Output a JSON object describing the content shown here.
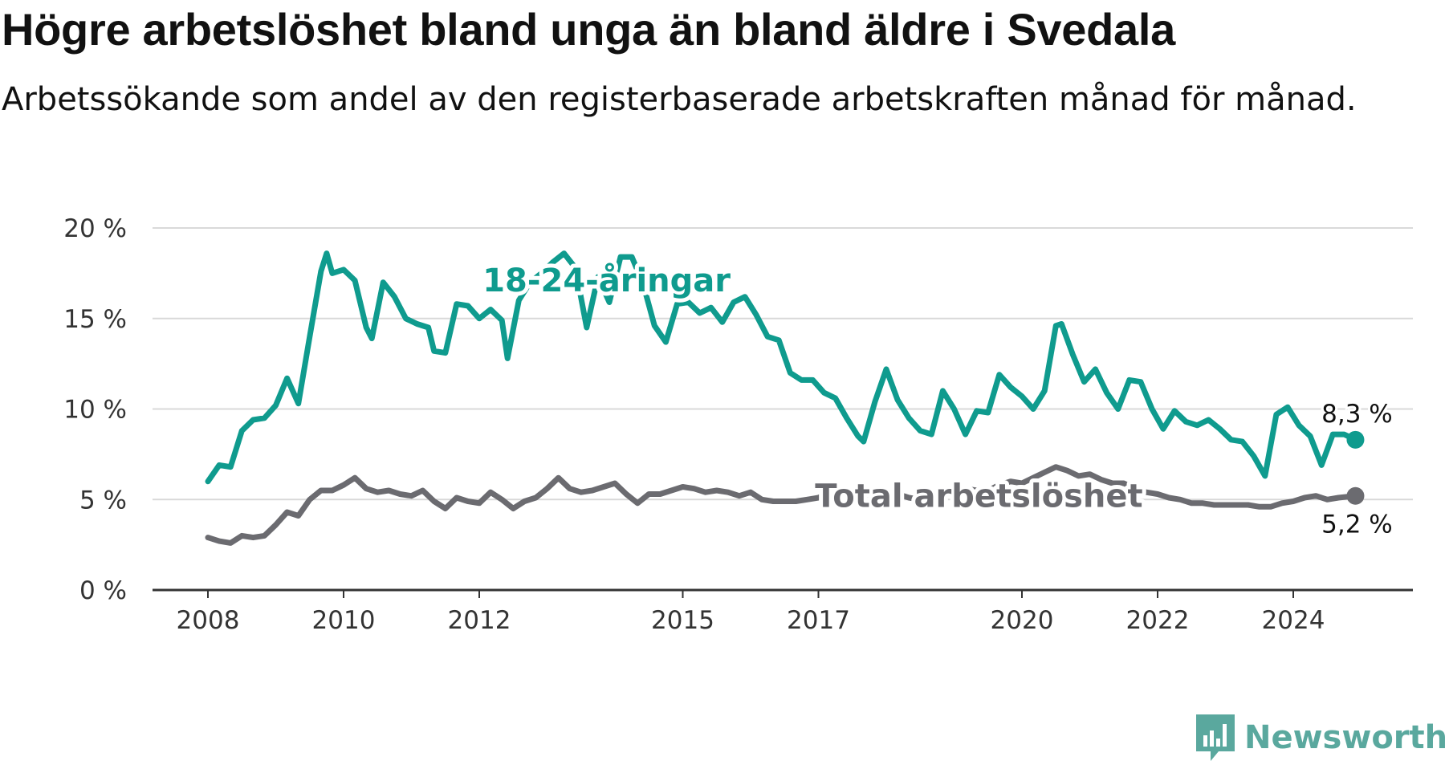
{
  "title": "Högre arbetslöshet bland unga än bland äldre i Svedala",
  "subtitle": "Arbetssökande som andel av den registerbaserade arbetskraften månad för månad.",
  "brand": {
    "name": "Newsworthy",
    "color": "#5aa89e"
  },
  "chart_data": {
    "type": "line",
    "x_ticks": [
      "2008",
      "2010",
      "2012",
      "2015",
      "2017",
      "2020",
      "2022",
      "2024"
    ],
    "y_ticks": [
      "0 %",
      "5 %",
      "10 %",
      "15 %",
      "20 %"
    ],
    "ylim": [
      0,
      20
    ],
    "grid": true,
    "series": [
      {
        "name": "18-24-åringar",
        "color": "#0f9b8e",
        "end_label": "8,3 %",
        "points": [
          [
            "2008-01",
            6.0
          ],
          [
            "2008-03",
            6.9
          ],
          [
            "2008-05",
            6.8
          ],
          [
            "2008-07",
            8.8
          ],
          [
            "2008-09",
            9.4
          ],
          [
            "2008-11",
            9.5
          ],
          [
            "2009-01",
            10.2
          ],
          [
            "2009-03",
            11.7
          ],
          [
            "2009-05",
            10.3
          ],
          [
            "2009-07",
            14.0
          ],
          [
            "2009-09",
            17.6
          ],
          [
            "2009-10",
            18.6
          ],
          [
            "2009-11",
            17.5
          ],
          [
            "2010-01",
            17.7
          ],
          [
            "2010-03",
            17.1
          ],
          [
            "2010-05",
            14.5
          ],
          [
            "2010-06",
            13.9
          ],
          [
            "2010-08",
            17.0
          ],
          [
            "2010-10",
            16.2
          ],
          [
            "2010-12",
            15.0
          ],
          [
            "2011-02",
            14.7
          ],
          [
            "2011-04",
            14.5
          ],
          [
            "2011-05",
            13.2
          ],
          [
            "2011-07",
            13.1
          ],
          [
            "2011-09",
            15.8
          ],
          [
            "2011-11",
            15.7
          ],
          [
            "2012-01",
            15.0
          ],
          [
            "2012-03",
            15.5
          ],
          [
            "2012-05",
            14.9
          ],
          [
            "2012-06",
            12.8
          ],
          [
            "2012-08",
            16.0
          ],
          [
            "2012-10",
            17.0
          ],
          [
            "2012-12",
            17.5
          ],
          [
            "2013-02",
            18.1
          ],
          [
            "2013-04",
            18.6
          ],
          [
            "2013-06",
            17.8
          ],
          [
            "2013-08",
            14.5
          ],
          [
            "2013-10",
            17.3
          ],
          [
            "2013-12",
            15.9
          ],
          [
            "2014-02",
            18.4
          ],
          [
            "2014-04",
            18.4
          ],
          [
            "2014-06",
            16.9
          ],
          [
            "2014-08",
            14.6
          ],
          [
            "2014-10",
            13.7
          ],
          [
            "2014-12",
            15.8
          ],
          [
            "2015-02",
            15.9
          ],
          [
            "2015-04",
            15.3
          ],
          [
            "2015-06",
            15.6
          ],
          [
            "2015-08",
            14.8
          ],
          [
            "2015-10",
            15.9
          ],
          [
            "2015-12",
            16.2
          ],
          [
            "2016-02",
            15.2
          ],
          [
            "2016-04",
            14.0
          ],
          [
            "2016-06",
            13.8
          ],
          [
            "2016-08",
            12.0
          ],
          [
            "2016-10",
            11.6
          ],
          [
            "2016-12",
            11.6
          ],
          [
            "2017-02",
            10.9
          ],
          [
            "2017-04",
            10.6
          ],
          [
            "2017-06",
            9.5
          ],
          [
            "2017-08",
            8.5
          ],
          [
            "2017-09",
            8.2
          ],
          [
            "2017-11",
            10.4
          ],
          [
            "2018-01",
            12.2
          ],
          [
            "2018-03",
            10.5
          ],
          [
            "2018-05",
            9.5
          ],
          [
            "2018-07",
            8.8
          ],
          [
            "2018-09",
            8.6
          ],
          [
            "2018-11",
            11.0
          ],
          [
            "2019-01",
            10.0
          ],
          [
            "2019-03",
            8.6
          ],
          [
            "2019-05",
            9.9
          ],
          [
            "2019-07",
            9.8
          ],
          [
            "2019-09",
            11.9
          ],
          [
            "2019-11",
            11.2
          ],
          [
            "2020-01",
            10.7
          ],
          [
            "2020-03",
            10.0
          ],
          [
            "2020-05",
            11.0
          ],
          [
            "2020-07",
            14.6
          ],
          [
            "2020-08",
            14.7
          ],
          [
            "2020-10",
            13.0
          ],
          [
            "2020-12",
            11.5
          ],
          [
            "2021-02",
            12.2
          ],
          [
            "2021-04",
            10.9
          ],
          [
            "2021-06",
            10.0
          ],
          [
            "2021-08",
            11.6
          ],
          [
            "2021-10",
            11.5
          ],
          [
            "2021-12",
            10.0
          ],
          [
            "2022-02",
            8.9
          ],
          [
            "2022-04",
            9.9
          ],
          [
            "2022-06",
            9.3
          ],
          [
            "2022-08",
            9.1
          ],
          [
            "2022-10",
            9.4
          ],
          [
            "2022-12",
            8.9
          ],
          [
            "2023-02",
            8.3
          ],
          [
            "2023-04",
            8.2
          ],
          [
            "2023-06",
            7.4
          ],
          [
            "2023-08",
            6.3
          ],
          [
            "2023-10",
            9.7
          ],
          [
            "2023-12",
            10.1
          ],
          [
            "2024-02",
            9.1
          ],
          [
            "2024-04",
            8.5
          ],
          [
            "2024-06",
            6.9
          ],
          [
            "2024-08",
            8.6
          ],
          [
            "2024-10",
            8.6
          ],
          [
            "2024-12",
            8.3
          ]
        ]
      },
      {
        "name": "Total arbetslöshet",
        "color": "#6b6b70",
        "end_label": "5,2 %",
        "points": [
          [
            "2008-01",
            2.9
          ],
          [
            "2008-03",
            2.7
          ],
          [
            "2008-05",
            2.6
          ],
          [
            "2008-07",
            3.0
          ],
          [
            "2008-09",
            2.9
          ],
          [
            "2008-11",
            3.0
          ],
          [
            "2009-01",
            3.6
          ],
          [
            "2009-03",
            4.3
          ],
          [
            "2009-05",
            4.1
          ],
          [
            "2009-07",
            5.0
          ],
          [
            "2009-09",
            5.5
          ],
          [
            "2009-11",
            5.5
          ],
          [
            "2010-01",
            5.8
          ],
          [
            "2010-03",
            6.2
          ],
          [
            "2010-05",
            5.6
          ],
          [
            "2010-07",
            5.4
          ],
          [
            "2010-09",
            5.5
          ],
          [
            "2010-11",
            5.3
          ],
          [
            "2011-01",
            5.2
          ],
          [
            "2011-03",
            5.5
          ],
          [
            "2011-05",
            4.9
          ],
          [
            "2011-07",
            4.5
          ],
          [
            "2011-09",
            5.1
          ],
          [
            "2011-11",
            4.9
          ],
          [
            "2012-01",
            4.8
          ],
          [
            "2012-03",
            5.4
          ],
          [
            "2012-05",
            5.0
          ],
          [
            "2012-07",
            4.5
          ],
          [
            "2012-09",
            4.9
          ],
          [
            "2012-11",
            5.1
          ],
          [
            "2013-01",
            5.6
          ],
          [
            "2013-03",
            6.2
          ],
          [
            "2013-05",
            5.6
          ],
          [
            "2013-07",
            5.4
          ],
          [
            "2013-09",
            5.5
          ],
          [
            "2013-11",
            5.7
          ],
          [
            "2014-01",
            5.9
          ],
          [
            "2014-03",
            5.3
          ],
          [
            "2014-05",
            4.8
          ],
          [
            "2014-07",
            5.3
          ],
          [
            "2014-09",
            5.3
          ],
          [
            "2014-11",
            5.5
          ],
          [
            "2015-01",
            5.7
          ],
          [
            "2015-03",
            5.6
          ],
          [
            "2015-05",
            5.4
          ],
          [
            "2015-07",
            5.5
          ],
          [
            "2015-09",
            5.4
          ],
          [
            "2015-11",
            5.2
          ],
          [
            "2016-01",
            5.4
          ],
          [
            "2016-03",
            5.0
          ],
          [
            "2016-05",
            4.9
          ],
          [
            "2016-07",
            4.9
          ],
          [
            "2016-09",
            4.9
          ],
          [
            "2016-11",
            5.0
          ],
          [
            "2017-01",
            5.1
          ],
          [
            "2017-03",
            5.4
          ],
          [
            "2017-05",
            5.2
          ],
          [
            "2017-07",
            5.1
          ],
          [
            "2017-09",
            5.2
          ],
          [
            "2017-11",
            5.4
          ],
          [
            "2018-01",
            5.5
          ],
          [
            "2018-03",
            5.3
          ],
          [
            "2018-05",
            5.1
          ],
          [
            "2018-07",
            5.0
          ],
          [
            "2018-09",
            5.1
          ],
          [
            "2018-11",
            5.2
          ],
          [
            "2019-01",
            5.4
          ],
          [
            "2019-03",
            5.6
          ],
          [
            "2019-05",
            5.5
          ],
          [
            "2019-07",
            5.5
          ],
          [
            "2019-09",
            5.8
          ],
          [
            "2019-11",
            6.0
          ],
          [
            "2020-01",
            5.9
          ],
          [
            "2020-03",
            6.2
          ],
          [
            "2020-05",
            6.5
          ],
          [
            "2020-07",
            6.8
          ],
          [
            "2020-09",
            6.6
          ],
          [
            "2020-11",
            6.3
          ],
          [
            "2021-01",
            6.4
          ],
          [
            "2021-03",
            6.1
          ],
          [
            "2021-05",
            5.9
          ],
          [
            "2021-07",
            5.9
          ],
          [
            "2021-09",
            5.6
          ],
          [
            "2021-11",
            5.4
          ],
          [
            "2022-01",
            5.3
          ],
          [
            "2022-03",
            5.1
          ],
          [
            "2022-05",
            5.0
          ],
          [
            "2022-07",
            4.8
          ],
          [
            "2022-09",
            4.8
          ],
          [
            "2022-11",
            4.7
          ],
          [
            "2023-01",
            4.7
          ],
          [
            "2023-03",
            4.7
          ],
          [
            "2023-05",
            4.7
          ],
          [
            "2023-07",
            4.6
          ],
          [
            "2023-09",
            4.6
          ],
          [
            "2023-11",
            4.8
          ],
          [
            "2024-01",
            4.9
          ],
          [
            "2024-03",
            5.1
          ],
          [
            "2024-05",
            5.2
          ],
          [
            "2024-07",
            5.0
          ],
          [
            "2024-09",
            5.1
          ],
          [
            "2024-12",
            5.2
          ]
        ]
      }
    ]
  }
}
